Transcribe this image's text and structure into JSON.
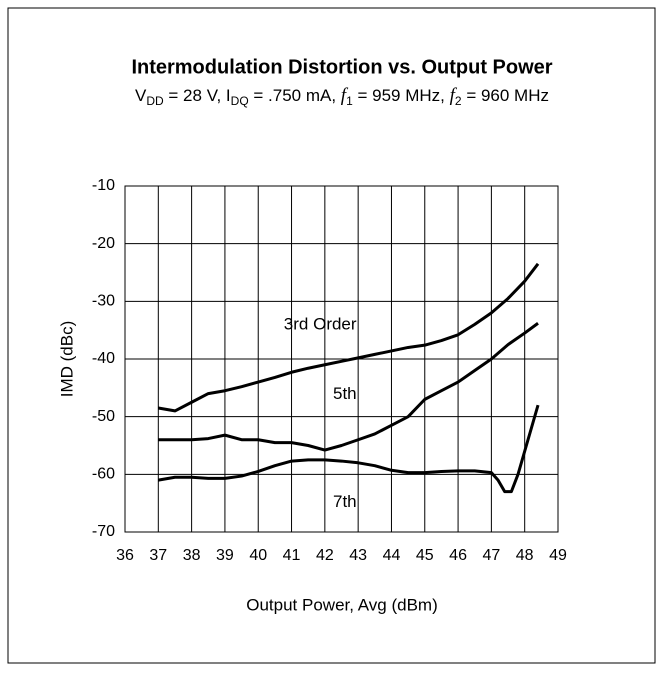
{
  "chart_data": {
    "type": "line",
    "title": "Intermodulation Distortion vs. Output Power",
    "subtitle": [
      {
        "text": "V"
      },
      {
        "text": "DD",
        "style": "sub"
      },
      {
        "text": " = 28 V, I"
      },
      {
        "text": "DQ",
        "style": "sub"
      },
      {
        "text": " = .750 mA, "
      },
      {
        "text": "f",
        "style": "italic"
      },
      {
        "text": "1",
        "style": "sub"
      },
      {
        "text": " = 959 MHz, "
      },
      {
        "text": "f",
        "style": "italic"
      },
      {
        "text": "2",
        "style": "sub"
      },
      {
        "text": " = 960 MHz"
      }
    ],
    "xlabel": "Output Power, Avg (dBm)",
    "ylabel": "IMD (dBc)",
    "xlim": [
      36,
      49
    ],
    "xticks": [
      36,
      37,
      38,
      39,
      40,
      41,
      42,
      43,
      44,
      45,
      46,
      47,
      48,
      49
    ],
    "ylim": [
      -70,
      -10
    ],
    "yticks": [
      -70,
      -60,
      -50,
      -40,
      -30,
      -20,
      -10
    ],
    "grid": true,
    "series": [
      {
        "color": "#000000",
        "x": [
          37,
          37.5,
          38,
          38.5,
          39,
          39.5,
          40,
          40.5,
          41,
          41.5,
          42,
          42.5,
          43,
          43.5,
          44,
          44.5,
          45,
          45.5,
          46,
          46.5,
          47,
          47.5,
          48,
          48.4
        ],
        "values": [
          -48.5,
          -49,
          -47.5,
          -46,
          -45.5,
          -44.8,
          -44,
          -43.2,
          -42.3,
          -41.6,
          -41,
          -40.4,
          -39.8,
          -39.2,
          -38.6,
          -38,
          -37.6,
          -36.8,
          -35.8,
          -34,
          -32,
          -29.5,
          -26.5,
          -23.5
        ]
      },
      {
        "color": "#000000",
        "x": [
          37,
          38,
          38.5,
          39,
          39.5,
          40,
          40.5,
          41,
          41.5,
          42,
          42.5,
          43,
          43.5,
          44,
          44.5,
          45,
          45.5,
          46,
          46.5,
          47,
          47.5,
          48,
          48.4
        ],
        "values": [
          -54,
          -54,
          -53.8,
          -53.2,
          -54,
          -54,
          -54.5,
          -54.5,
          -55,
          -55.8,
          -55,
          -54,
          -53,
          -51.5,
          -50,
          -47,
          -45.5,
          -44,
          -42,
          -40,
          -37.5,
          -35.5,
          -33.8
        ]
      },
      {
        "color": "#000000",
        "x": [
          37,
          37.5,
          38,
          38.5,
          39,
          39.5,
          40,
          40.5,
          41,
          41.5,
          42,
          42.5,
          43,
          43.5,
          44,
          44.5,
          45,
          45.5,
          46,
          46.5,
          47,
          47.2,
          47.4,
          47.6,
          47.8,
          48,
          48.4
        ],
        "values": [
          -61,
          -60.5,
          -60.5,
          -60.7,
          -60.7,
          -60.3,
          -59.5,
          -58.5,
          -57.7,
          -57.5,
          -57.5,
          -57.7,
          -58,
          -58.5,
          -59.3,
          -59.7,
          -59.7,
          -59.5,
          -59.4,
          -59.4,
          -59.7,
          -61,
          -63,
          -63,
          -60,
          -56,
          -48
        ]
      }
    ],
    "annotations": [
      {
        "text": "3rd Order",
        "x": 41.86,
        "y": -34.1
      },
      {
        "text": "5th",
        "x": 42.6,
        "y": -46.2
      },
      {
        "text": "7th",
        "x": 42.6,
        "y": -64.9
      }
    ]
  }
}
